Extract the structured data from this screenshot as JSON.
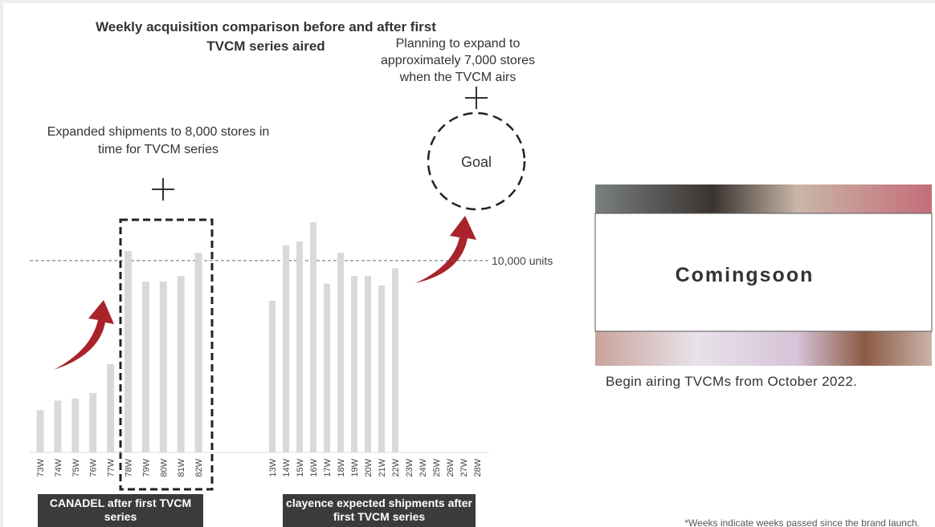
{
  "chart_data": {
    "type": "bar",
    "title": "Weekly acquisition comparison before and after first TVCM series aired",
    "color": "#d9d9d9",
    "ylim": [
      0,
      12000
    ],
    "reference_line": {
      "value": 10000,
      "label": "10,000 units"
    },
    "groups": [
      {
        "label": "CANADEL after first TVCM series",
        "categories": [
          "73W",
          "74W",
          "75W",
          "76W",
          "77W",
          "78W",
          "79W",
          "80W",
          "81W",
          "82W"
        ],
        "values": [
          2200,
          2700,
          2800,
          3100,
          4600,
          10500,
          8900,
          8900,
          9200,
          10400
        ]
      },
      {
        "label": "clayence expected shipments after first TVCM series",
        "categories": [
          "13W",
          "14W",
          "15W",
          "16W",
          "17W",
          "18W",
          "19W",
          "20W",
          "21W",
          "22W",
          "23W",
          "24W",
          "25W",
          "26W",
          "27W",
          "28W"
        ],
        "values": [
          7900,
          10800,
          11000,
          12000,
          8800,
          10400,
          9200,
          9200,
          8700,
          9600,
          null,
          null,
          null,
          null,
          null,
          null
        ]
      }
    ],
    "annotations": [
      "Expanded shipments to 8,000 stores in time for TVCM series",
      "Planning to expand to approximately 7,000 stores when the TVCM airs",
      "Goal"
    ]
  },
  "panel": {
    "text": "Comingsoon",
    "caption": "Begin airing TVCMs from October 2022."
  },
  "footnote": "*Weeks indicate weeks passed since the brand launch."
}
